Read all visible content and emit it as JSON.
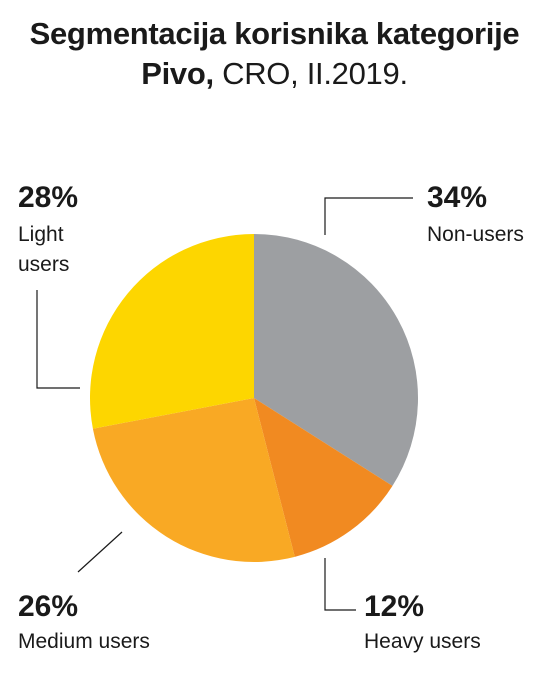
{
  "title": {
    "line1": "Segmentacija korisnika kategorije",
    "line2_bold": "Pivo,",
    "line2_normal": " CRO, II.2019."
  },
  "chart_data": {
    "type": "pie",
    "title": "Segmentacija korisnika kategorije Pivo, CRO, II.2019.",
    "slices": [
      {
        "name": "Non-users",
        "value": 34,
        "label": "34%",
        "color": "#9d9fa2"
      },
      {
        "name": "Heavy users",
        "value": 12,
        "label": "12%",
        "color": "#f18a21"
      },
      {
        "name": "Medium users",
        "value": 26,
        "label": "26%",
        "color": "#f9a924"
      },
      {
        "name": "Light users",
        "value": 28,
        "label": "28%",
        "color": "#fdd600"
      }
    ],
    "start": "12 o'clock",
    "direction": "clockwise"
  }
}
